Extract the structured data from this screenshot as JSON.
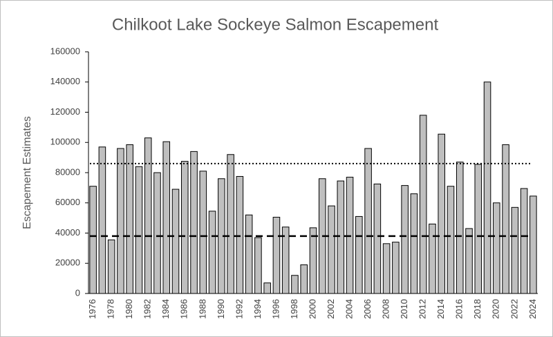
{
  "chart_data": {
    "type": "bar",
    "title": "Chilkoot Lake Sockeye Salmon Escapement",
    "y_label": "Escapement Estimates",
    "categories": [
      "1976",
      null,
      "1978",
      null,
      "1980",
      null,
      "1982",
      null,
      "1984",
      null,
      "1986",
      null,
      "1988",
      null,
      "1990",
      null,
      "1992",
      null,
      "1994",
      null,
      "1996",
      null,
      "1998",
      null,
      "2000",
      null,
      "2002",
      null,
      "2004",
      null,
      "2006",
      null,
      "2008",
      null,
      "2010",
      null,
      "2012",
      null,
      "2014",
      null,
      "2016",
      null,
      "2018",
      null,
      "2020",
      null,
      "2022",
      null,
      "2024"
    ],
    "values": [
      71000,
      97000,
      35500,
      96000,
      98500,
      84000,
      103000,
      80000,
      100500,
      69000,
      87500,
      94000,
      81000,
      54500,
      76000,
      92000,
      77500,
      52000,
      37000,
      7000,
      50500,
      44000,
      12000,
      19000,
      43500,
      76000,
      58000,
      74500,
      77000,
      51000,
      96000,
      72500,
      33000,
      34000,
      71500,
      66000,
      118000,
      46000,
      105500,
      71000,
      87000,
      43000,
      85500,
      140000,
      60000,
      98500,
      57000,
      69500,
      64500
    ],
    "color": "#bfbfbf",
    "ylim": [
      0,
      160000
    ],
    "yticks": [
      0,
      20000,
      40000,
      60000,
      80000,
      100000,
      120000,
      140000,
      160000
    ],
    "grid": false,
    "reference_lines": [
      {
        "value": 86000,
        "style": "dotted"
      },
      {
        "value": 38000,
        "style": "dashed"
      }
    ]
  }
}
